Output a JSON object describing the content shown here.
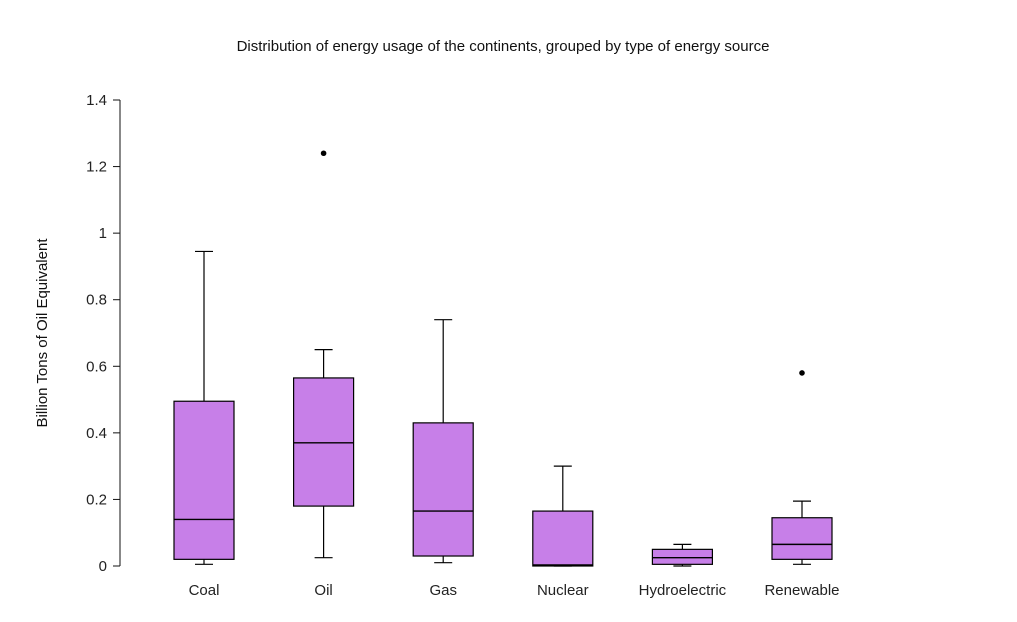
{
  "chart_data": {
    "type": "boxplot",
    "title": "Distribution of energy usage of the continents, grouped by type of energy source",
    "ylabel": "Billion Tons of Oil Equivalent",
    "xlabel": "",
    "ylim": [
      0,
      1.4
    ],
    "yticks": [
      0,
      0.2,
      0.4,
      0.6,
      0.8,
      1,
      1.2,
      1.4
    ],
    "ytick_labels": [
      "0",
      "0.2",
      "0.4",
      "0.6",
      "0.8",
      "1",
      "1.2",
      "1.4"
    ],
    "box_color": "#c77fe8",
    "categories": [
      "Coal",
      "Oil",
      "Gas",
      "Nuclear",
      "Hydroelectric",
      "Renewable"
    ],
    "boxes": [
      {
        "category": "Coal",
        "min": 0.005,
        "q1": 0.02,
        "median": 0.14,
        "q3": 0.495,
        "max": 0.945,
        "outliers": []
      },
      {
        "category": "Oil",
        "min": 0.025,
        "q1": 0.18,
        "median": 0.37,
        "q3": 0.565,
        "max": 0.65,
        "outliers": [
          1.24
        ]
      },
      {
        "category": "Gas",
        "min": 0.01,
        "q1": 0.03,
        "median": 0.165,
        "q3": 0.43,
        "max": 0.74,
        "outliers": []
      },
      {
        "category": "Nuclear",
        "min": 0.0,
        "q1": 0.0,
        "median": 0.003,
        "q3": 0.165,
        "max": 0.3,
        "outliers": []
      },
      {
        "category": "Hydroelectric",
        "min": 0.0,
        "q1": 0.005,
        "median": 0.025,
        "q3": 0.05,
        "max": 0.065,
        "outliers": []
      },
      {
        "category": "Renewable",
        "min": 0.005,
        "q1": 0.02,
        "median": 0.065,
        "q3": 0.145,
        "max": 0.195,
        "outliers": [
          0.58
        ]
      }
    ]
  }
}
